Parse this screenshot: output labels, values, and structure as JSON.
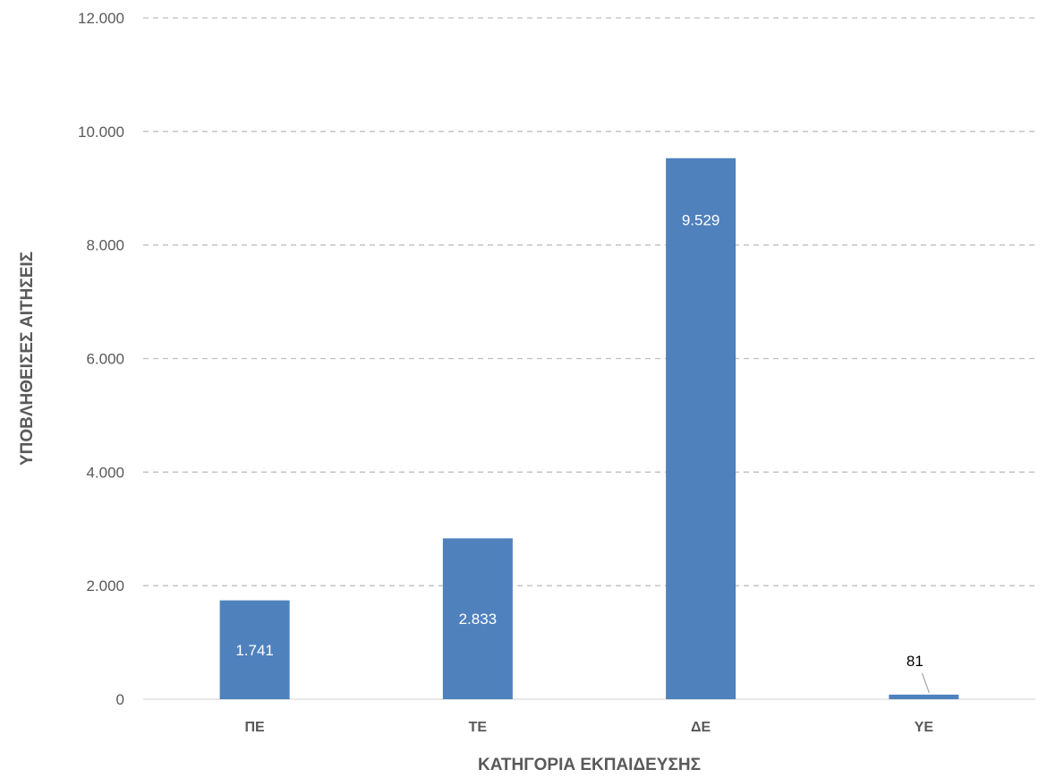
{
  "chart_data": {
    "type": "bar",
    "categories": [
      "ΠΕ",
      "ΤΕ",
      "ΔΕ",
      "ΥΕ"
    ],
    "values": [
      1741,
      2833,
      9529,
      81
    ],
    "value_labels": [
      "1.741",
      "2.833",
      "9.529",
      "81"
    ],
    "xlabel": "ΚΑΤΗΓΟΡΙΑ ΕΚΠΑΙΔΕΥΣΗΣ",
    "ylabel": "ΥΠΟΒΛΗΘΕΙΣΕΣ ΑΙΤΗΣΕΙΣ",
    "ylim": [
      0,
      12000
    ],
    "yticks": [
      0,
      2000,
      4000,
      6000,
      8000,
      10000,
      12000
    ],
    "ytick_labels": [
      "0",
      "2.000",
      "4.000",
      "6.000",
      "8.000",
      "10.000",
      "12.000"
    ],
    "grid": true,
    "grid_style": "dashed",
    "bar_color": "#4F81BD",
    "label_color_inside": "#ffffff",
    "label_color_outside": "#000000"
  }
}
